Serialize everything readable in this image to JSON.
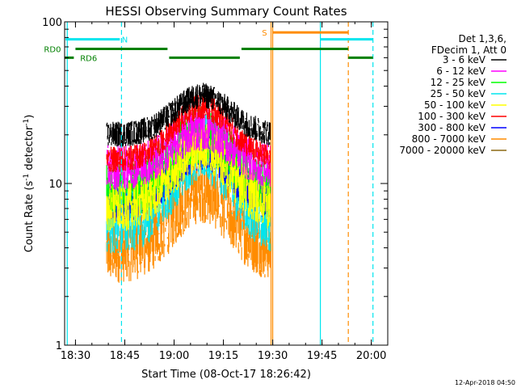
{
  "chart_data": {
    "type": "line",
    "title": "HESSI Observing Summary Count Rates",
    "xlabel": "Start Time (08-Oct-17 18:26:42)",
    "ylabel_prefix": "Count Rate (s",
    "ylabel_sup": "-1",
    "ylabel_mid": " detector",
    "ylabel_sup2": "-1",
    "ylabel_suffix": ")",
    "y_scale": "log",
    "ylim": [
      1,
      100
    ],
    "xlim_minutes": [
      26.7,
      125
    ],
    "x_ticks": [
      {
        "label": "18:30",
        "minute": 30
      },
      {
        "label": "18:45",
        "minute": 45
      },
      {
        "label": "19:00",
        "minute": 60
      },
      {
        "label": "19:15",
        "minute": 75
      },
      {
        "label": "19:30",
        "minute": 90
      },
      {
        "label": "19:45",
        "minute": 105
      },
      {
        "label": "20:00",
        "minute": 120
      }
    ],
    "y_ticks": [
      {
        "label": "1",
        "value": 1
      },
      {
        "label": "10",
        "value": 10
      },
      {
        "label": "100",
        "value": 100
      }
    ],
    "legend_header": [
      "Det 1,3,6,",
      "FDecim 1, Att 0"
    ],
    "series": [
      {
        "name": "3 - 6 keV",
        "color": "#000000",
        "base": 20,
        "peak": 35,
        "noise": 0.08
      },
      {
        "name": "6 - 12 keV",
        "color": "#ff00ff",
        "base": 12.5,
        "peak": 22,
        "noise": 0.14
      },
      {
        "name": "12 - 25 keV",
        "color": "#00ff00",
        "base": 9,
        "peak": 20,
        "noise": 0.18
      },
      {
        "name": "25 - 50 keV",
        "color": "#00e5ee",
        "base": 6,
        "peak": 17,
        "noise": 0.22
      },
      {
        "name": "50 - 100 keV",
        "color": "#ffff00",
        "base": 7,
        "peak": 17,
        "noise": 0.15
      },
      {
        "name": "100 - 300 keV",
        "color": "#ff0000",
        "base": 14,
        "peak": 30,
        "noise": 0.08
      },
      {
        "name": "300 - 800 keV",
        "color": "#0000ff",
        "base": 7.5,
        "peak": 16,
        "noise": 0.12
      },
      {
        "name": "800 - 7000 keV",
        "color": "#ff8c00",
        "base": 3.8,
        "peak": 9,
        "noise": 0.2
      },
      {
        "name": "7000 - 20000 keV",
        "color": "#8b6914",
        "base": 0,
        "peak": 0,
        "noise": 0
      }
    ],
    "data_window_minutes": [
      39.5,
      89.5
    ],
    "vertical_lines": [
      {
        "minute": 27.5,
        "color": "#00e5ee",
        "style": "solid"
      },
      {
        "minute": 44,
        "color": "#00e5ee",
        "style": "dashed"
      },
      {
        "minute": 89.5,
        "color": "#ff8c00",
        "style": "solid"
      },
      {
        "minute": 90,
        "color": "#ff8c00",
        "style": "solid"
      },
      {
        "minute": 104.5,
        "color": "#00e5ee",
        "style": "solid"
      },
      {
        "minute": 113,
        "color": "#ff8c00",
        "style": "dashed"
      },
      {
        "minute": 120.5,
        "color": "#00e5ee",
        "style": "dashed"
      }
    ],
    "flag_bars": [
      {
        "label": "N",
        "color": "#00e5ee",
        "value": 78,
        "segments": [
          [
            27,
            43.5
          ],
          [
            104.5,
            120.5
          ]
        ],
        "label_minute": 45
      },
      {
        "label": "S",
        "color": "#ff8c00",
        "value": 86,
        "segments": [
          [
            90,
            113
          ]
        ],
        "label_minute": 87.5
      },
      {
        "label": "RD0",
        "color": "#008000",
        "value": 68,
        "segments": [
          [
            30,
            58
          ],
          [
            80.5,
            113
          ]
        ],
        "label_minute": 23
      },
      {
        "label": "RD6",
        "color": "#008000",
        "value": 60,
        "segments": [
          [
            26.7,
            29.5
          ],
          [
            58.5,
            80
          ],
          [
            113,
            120.5
          ]
        ],
        "label_minute": 34
      }
    ]
  },
  "footer_timestamp": "12-Apr-2018 04:50"
}
